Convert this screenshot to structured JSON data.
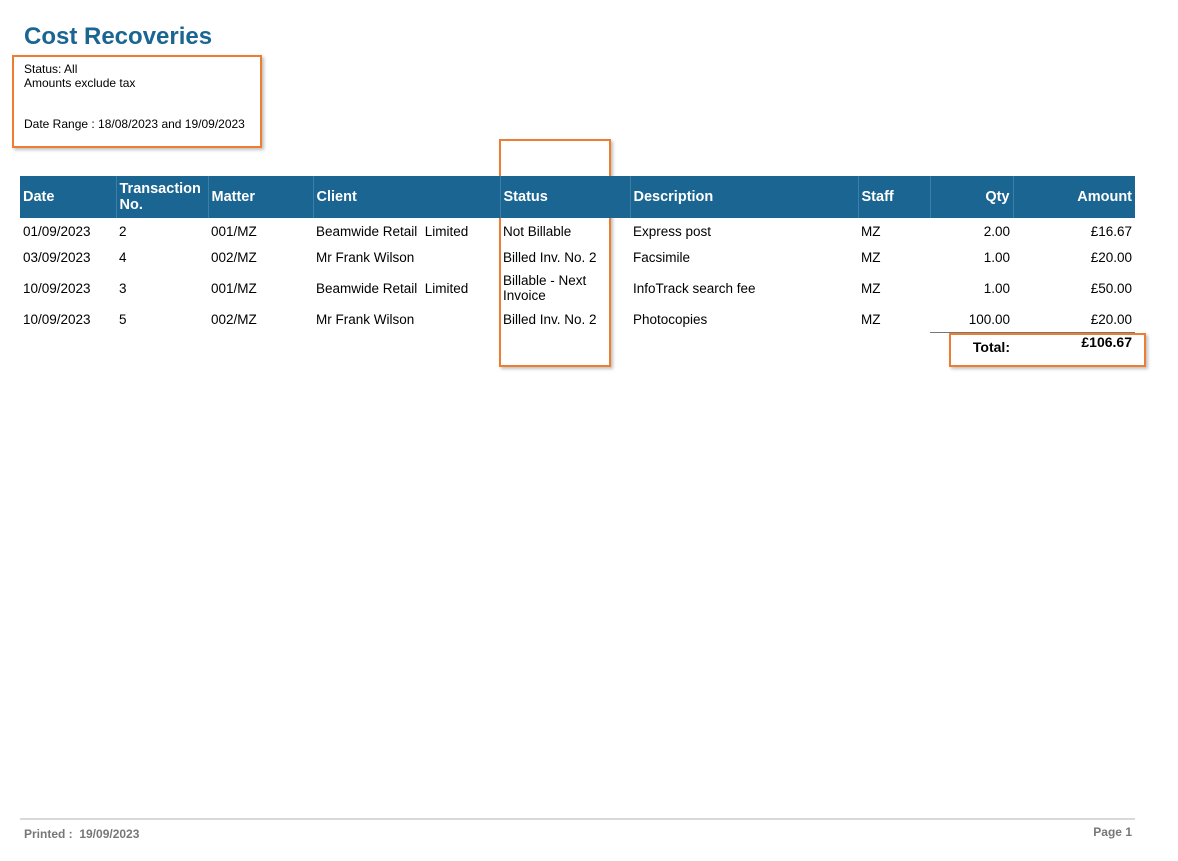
{
  "report": {
    "title": "Cost Recoveries",
    "status_line": "Status: All",
    "tax_line": "Amounts exclude tax",
    "date_range_line": "Date Range : 18/08/2023 and 19/09/2023"
  },
  "table": {
    "headers": {
      "date": "Date",
      "transaction_no": "Transaction No.",
      "matter": "Matter",
      "client": "Client",
      "status": "Status",
      "description": "Description",
      "staff": "Staff",
      "qty": "Qty",
      "amount": "Amount"
    },
    "rows": [
      {
        "date": "01/09/2023",
        "transaction_no": "2",
        "matter": "001/MZ",
        "client": "Beamwide Retail  Limited",
        "status": "Not Billable",
        "description": "Express post",
        "staff": "MZ",
        "qty": "2.00",
        "amount": "£16.67"
      },
      {
        "date": "03/09/2023",
        "transaction_no": "4",
        "matter": "002/MZ",
        "client": "Mr Frank Wilson",
        "status": "Billed Inv. No. 2",
        "description": "Facsimile",
        "staff": "MZ",
        "qty": "1.00",
        "amount": "£20.00"
      },
      {
        "date": "10/09/2023",
        "transaction_no": "3",
        "matter": "001/MZ",
        "client": "Beamwide Retail  Limited",
        "status": "Billable - Next Invoice",
        "description": "InfoTrack search fee",
        "staff": "MZ",
        "qty": "1.00",
        "amount": "£50.00"
      },
      {
        "date": "10/09/2023",
        "transaction_no": "5",
        "matter": "002/MZ",
        "client": "Mr Frank Wilson",
        "status": "Billed Inv. No. 2",
        "description": "Photocopies",
        "staff": "MZ",
        "qty": "100.00",
        "amount": "£20.00"
      }
    ],
    "total_label": "Total:",
    "total_value": "£106.67"
  },
  "footer": {
    "printed": "Printed :  19/09/2023",
    "page": "Page 1"
  },
  "colors": {
    "header_bg": "#1b6592",
    "title": "#1b6592",
    "highlight_border": "#ed7d31",
    "footer_text": "#777777"
  }
}
